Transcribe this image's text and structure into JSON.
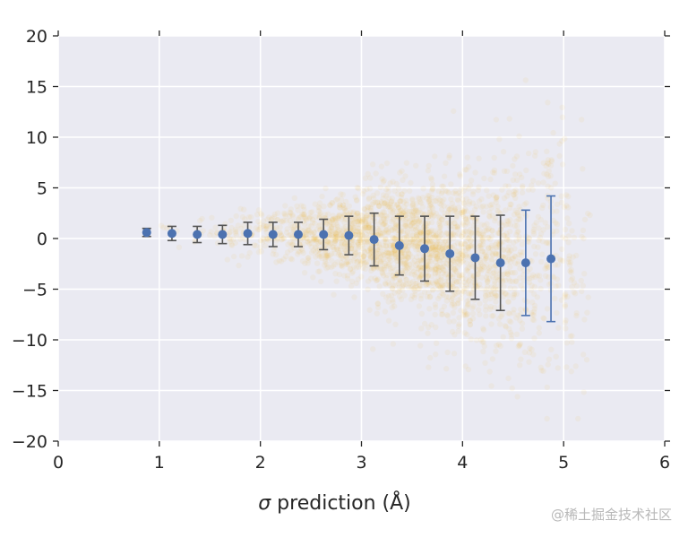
{
  "chart_data": {
    "type": "scatter",
    "xlabel_symbol": "σ",
    "xlabel_text": " prediction (Å)",
    "xlim": [
      0,
      6
    ],
    "ylim": [
      -20,
      20
    ],
    "x_ticks": [
      0,
      1,
      2,
      3,
      4,
      5,
      6
    ],
    "y_ticks": [
      20,
      15,
      10,
      5,
      0,
      -5,
      -10,
      -15,
      -20
    ],
    "grid": true,
    "background": "#eaeaf2",
    "colors": {
      "scatter": "#f0a500",
      "errorbar": "#4c72b0",
      "errorbar_cap": "#555555"
    },
    "errorbar_series": {
      "x": [
        0.875,
        1.125,
        1.375,
        1.625,
        1.875,
        2.125,
        2.375,
        2.625,
        2.875,
        3.125,
        3.375,
        3.625,
        3.875,
        4.125,
        4.375,
        4.625,
        4.875
      ],
      "mean": [
        0.6,
        0.5,
        0.4,
        0.4,
        0.5,
        0.4,
        0.4,
        0.4,
        0.3,
        -0.1,
        -0.7,
        -1.0,
        -1.5,
        -1.9,
        -2.4,
        -2.4,
        -2.0
      ],
      "std": [
        0.4,
        0.7,
        0.8,
        0.9,
        1.1,
        1.2,
        1.2,
        1.5,
        1.9,
        2.6,
        2.9,
        3.2,
        3.7,
        4.1,
        4.7,
        5.2,
        6.2
      ]
    }
  },
  "watermark": "@稀土掘金技术社区"
}
